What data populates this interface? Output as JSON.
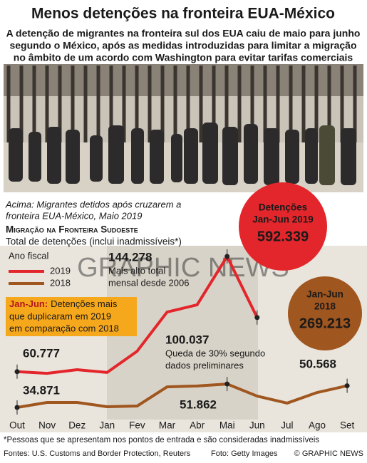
{
  "title": "Menos detenções na fronteira EUA-México",
  "subtitle": [
    "A detenção de migrantes na fronteira sul dos EUA caiu de maio para junho",
    "segundo o México, após as medidas introduzidas para limitar a migração",
    "no âmbito de um acordo com Washington para evitar tarifas comerciais"
  ],
  "photo_caption": [
    "Acima: Migrantes detidos após cruzarem a",
    "fronteira EUA-México, Maio 2019"
  ],
  "watermark": "GRAPHIC NEWS",
  "chart_data": {
    "type": "line",
    "title": "Migração na Fronteira Sudoeste",
    "subtitle": "Total de detenções (inclui inadmissíveis*)",
    "legend_title": "Ano fiscal",
    "categories": [
      "Out",
      "Nov",
      "Dez",
      "Jan",
      "Fev",
      "Mar",
      "Abr",
      "Mai",
      "Jun",
      "Jul",
      "Ago",
      "Set"
    ],
    "series": [
      {
        "name": "2019",
        "color": "#e3262c",
        "values": [
          60777,
          59600,
          62200,
          60200,
          75600,
          104000,
          109200,
          144278,
          100037,
          null,
          null,
          null
        ],
        "value_labels": [
          "60.777",
          null,
          null,
          null,
          null,
          null,
          null,
          "144.278",
          "100.037",
          null,
          null,
          null
        ]
      },
      {
        "name": "2018",
        "color": "#a0561f",
        "values": [
          34871,
          38500,
          38500,
          35400,
          35900,
          49800,
          50400,
          51862,
          43100,
          38000,
          45700,
          50568
        ],
        "value_labels": [
          "34.871",
          null,
          null,
          null,
          null,
          null,
          null,
          "51.862",
          null,
          null,
          null,
          "50.568"
        ]
      }
    ],
    "annotations": [
      {
        "lines": [
          "Mais alto total",
          "mensal desde 2006"
        ]
      },
      {
        "lines": [
          "Queda de 30% segundo",
          "dados preliminares"
        ]
      }
    ]
  },
  "note": {
    "label": "Jan-Jun:",
    "lines": [
      "Detenções mais",
      "que duplicaram em 2019",
      "em comparação com 2018"
    ]
  },
  "totals": [
    {
      "lines": [
        "Detenções",
        "Jan-Jun 2019"
      ],
      "value": "592.339",
      "color": "#e3262c"
    },
    {
      "lines": [
        "Jan-Jun",
        "2018"
      ],
      "value": "269.213",
      "color": "#a0561f"
    }
  ],
  "footnote": "*Pessoas que se apresentam nos pontos de entrada e são consideradas inadmissíveis",
  "sources": "Fontes: U.S. Customs and Border Protection, Reuters",
  "photo_credit": "Foto: Getty Images",
  "copyright": "© GRAPHIC NEWS"
}
